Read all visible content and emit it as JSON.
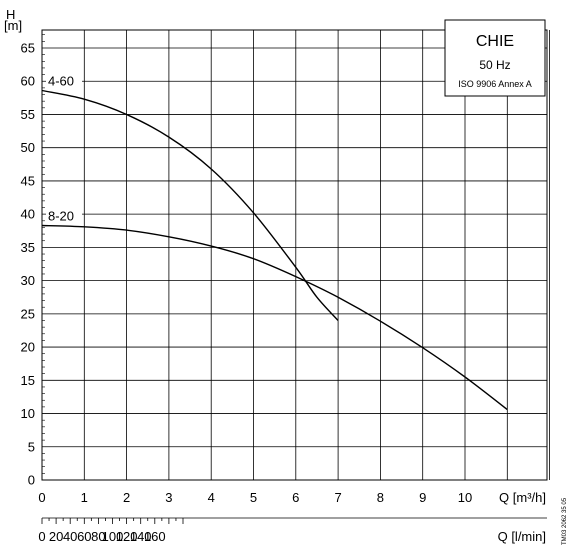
{
  "chart_data": {
    "type": "line",
    "title": "",
    "ylabel": "H",
    "yunit": "[m]",
    "xlabel_top": "Q [m³/h]",
    "xlabel_bottom": "Q [l/min]",
    "ylim": [
      0,
      68
    ],
    "xlim": [
      0,
      12
    ],
    "xlim_secondary": [
      0,
      200
    ],
    "y_ticks": [
      0,
      5,
      10,
      15,
      20,
      25,
      30,
      35,
      40,
      45,
      50,
      55,
      60,
      65
    ],
    "x_ticks": [
      0,
      1,
      2,
      3,
      4,
      5,
      6,
      7,
      8,
      9,
      10
    ],
    "x_ticks_secondary": [
      0,
      20,
      40,
      60,
      80,
      100,
      120,
      140,
      160
    ],
    "grid": true,
    "legend": {
      "position": "top-right",
      "title": "CHIE",
      "frequency": "50 Hz",
      "standard": "ISO 9906 Annex A"
    },
    "series": [
      {
        "name": "4-60",
        "x": [
          0,
          1,
          2,
          3,
          4,
          5,
          6,
          6.5,
          7
        ],
        "y": [
          58.6,
          57.3,
          55.0,
          51.6,
          46.8,
          40.2,
          32.0,
          27.5,
          24.0
        ]
      },
      {
        "name": "8-20",
        "x": [
          0,
          1,
          2,
          3,
          4,
          5,
          6,
          7,
          8,
          9,
          10,
          11
        ],
        "y": [
          38.3,
          38.1,
          37.6,
          36.6,
          35.2,
          33.3,
          30.6,
          27.5,
          23.9,
          19.9,
          15.5,
          10.6
        ]
      }
    ]
  },
  "doc_id": "TM03 2062 35 05"
}
